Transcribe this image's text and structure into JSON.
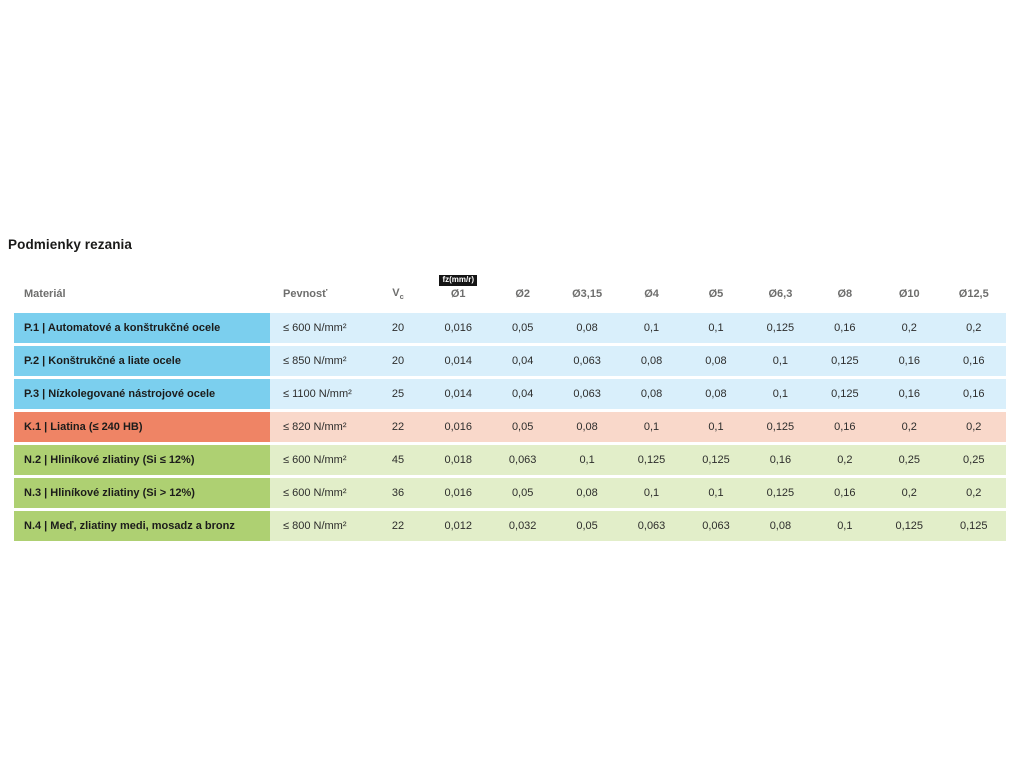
{
  "title": "Podmienky rezania",
  "table": {
    "columns": {
      "material": "Materiál",
      "pevnost": "Pevnosť",
      "vc_base": "V",
      "vc_sub": "c",
      "fz_badge": "fz(mm/r)",
      "diameters": [
        "Ø1",
        "Ø2",
        "Ø3,15",
        "Ø4",
        "Ø5",
        "Ø6,3",
        "Ø8",
        "Ø10",
        "Ø12,5"
      ]
    },
    "groups": {
      "steel": {
        "cell": "#7bcfee",
        "row": "#d9effb"
      },
      "cast_iron": {
        "cell": "#ef8465",
        "row": "#f9d8ca"
      },
      "nonferrous": {
        "cell": "#aed072",
        "row": "#e2eec9"
      }
    },
    "rows": [
      {
        "group": "steel",
        "material": "P.1 | Automatové a konštrukčné ocele",
        "pevnost": "≤ 600 N/mm²",
        "vc": "20",
        "fz": [
          "0,016",
          "0,05",
          "0,08",
          "0,1",
          "0,1",
          "0,125",
          "0,16",
          "0,2",
          "0,2"
        ]
      },
      {
        "group": "steel",
        "material": "P.2 | Konštrukčné a liate ocele",
        "pevnost": "≤ 850 N/mm²",
        "vc": "20",
        "fz": [
          "0,014",
          "0,04",
          "0,063",
          "0,08",
          "0,08",
          "0,1",
          "0,125",
          "0,16",
          "0,16"
        ]
      },
      {
        "group": "steel",
        "material": "P.3 | Nízkolegované nástrojové ocele",
        "pevnost": "≤ 1100 N/mm²",
        "vc": "25",
        "fz": [
          "0,014",
          "0,04",
          "0,063",
          "0,08",
          "0,08",
          "0,1",
          "0,125",
          "0,16",
          "0,16"
        ]
      },
      {
        "group": "cast_iron",
        "material": "K.1 | Liatina (≤ 240 HB)",
        "pevnost": "≤ 820 N/mm²",
        "vc": "22",
        "fz": [
          "0,016",
          "0,05",
          "0,08",
          "0,1",
          "0,1",
          "0,125",
          "0,16",
          "0,2",
          "0,2"
        ]
      },
      {
        "group": "nonferrous",
        "material": "N.2 | Hliníkové zliatiny (Si ≤ 12%)",
        "pevnost": "≤ 600 N/mm²",
        "vc": "45",
        "fz": [
          "0,018",
          "0,063",
          "0,1",
          "0,125",
          "0,125",
          "0,16",
          "0,2",
          "0,25",
          "0,25"
        ]
      },
      {
        "group": "nonferrous",
        "material": "N.3 | Hliníkové zliatiny (Si > 12%)",
        "pevnost": "≤ 600 N/mm²",
        "vc": "36",
        "fz": [
          "0,016",
          "0,05",
          "0,08",
          "0,1",
          "0,1",
          "0,125",
          "0,16",
          "0,2",
          "0,2"
        ]
      },
      {
        "group": "nonferrous",
        "material": "N.4 | Meď, zliatiny medi, mosadz a bronz",
        "pevnost": "≤ 800 N/mm²",
        "vc": "22",
        "fz": [
          "0,012",
          "0,032",
          "0,05",
          "0,063",
          "0,063",
          "0,08",
          "0,1",
          "0,125",
          "0,125"
        ]
      }
    ]
  }
}
